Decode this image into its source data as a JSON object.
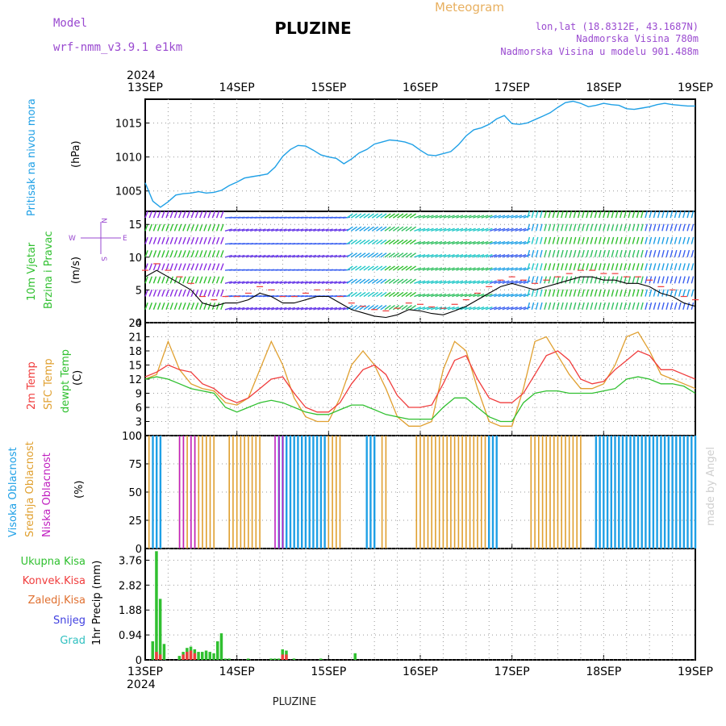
{
  "header": {
    "title": "PLUZINE",
    "meteogram_label": "Meteogram",
    "model_label": "Model",
    "model_name": "wrf-nmm_v3.9.1  e1km",
    "lonlat": "lon,lat (18.8312E, 43.1687N)",
    "altitude": "Nadmorska Visina 780m",
    "model_altitude": "Nadmorska Visina u modelu 901.488m",
    "footer_title": "PLUZINE",
    "credit": "made by Angel"
  },
  "colors": {
    "pressure": "#1fa0e6",
    "temp2m": "#f03c3c",
    "sfc_temp": "#e0a030",
    "dewpt": "#30c030",
    "high_cloud": "#1fa0e6",
    "mid_cloud": "#e0a030",
    "low_cloud": "#c020c0",
    "total_precip": "#30c030",
    "conv_precip": "#f03c3c",
    "frozen_precip": "#e07030",
    "snow": "#4040e0",
    "hail": "#30c0c0",
    "purple_label": "#9a4ad0",
    "meteogram_label": "#e8b060"
  },
  "time_axis": {
    "year": "2024",
    "labels": [
      "13SEP",
      "14SEP",
      "15SEP",
      "16SEP",
      "17SEP",
      "18SEP",
      "19SEP"
    ]
  },
  "panels": {
    "pressure": {
      "ylabel_name": "Pritisak na nivou mora",
      "unit": "(hPa)",
      "ticks": [
        "1005",
        "1010",
        "1015"
      ]
    },
    "wind": {
      "ylabel_line1": "10m Vjetar",
      "ylabel_line2": "Brzina i Pravac",
      "unit": "(m/s)",
      "ticks": [
        "0",
        "5",
        "10",
        "15"
      ],
      "compass_n": "N",
      "compass_w": "W",
      "compass_e": "E",
      "compass_s": "S"
    },
    "temp": {
      "label_2m": "2m Temp",
      "label_sfc": "SFC Temp",
      "label_dew": "dewpt Temp",
      "unit": "(C)",
      "ticks": [
        "0",
        "3",
        "6",
        "9",
        "12",
        "15",
        "18",
        "21",
        "24"
      ]
    },
    "cloud": {
      "label_high": "Visoka Oblacnost",
      "label_mid": "Srednja Oblacnost",
      "label_low": "Niska Oblacnost",
      "unit": "(%)",
      "ticks": [
        "0",
        "25",
        "50",
        "75",
        "100"
      ]
    },
    "precip": {
      "label_total": "Ukupna Kisa",
      "label_conv": "Konvek.Kisa",
      "label_frozen": "Zaledj.Kisa",
      "label_snow": "Snijeg",
      "label_hail": "Grad",
      "ylabel": "1hr Precip (mm)",
      "ticks": [
        "0",
        "0.94",
        "1.88",
        "2.82",
        "3.76"
      ]
    }
  },
  "chart_data": [
    {
      "type": "line",
      "name": "pressure",
      "x_unit": "hours since 13SEP 00UTC",
      "ylim": [
        1002,
        1018.5
      ],
      "series": [
        {
          "x": [
            0,
            2,
            4,
            6,
            8,
            10,
            12,
            14,
            16,
            18,
            20,
            22,
            24,
            26,
            28,
            30,
            32,
            34,
            36,
            38,
            40,
            42,
            44,
            46,
            48,
            50,
            52,
            54,
            56,
            58,
            60,
            62,
            64,
            66,
            68,
            70,
            72,
            74,
            76,
            78,
            80,
            82,
            84,
            86,
            88,
            90,
            92,
            94,
            96,
            98,
            100,
            102,
            104,
            106,
            108,
            110,
            112,
            114,
            116,
            118,
            120,
            122,
            124,
            126,
            128,
            130,
            132,
            134,
            136,
            138,
            140,
            142,
            144
          ],
          "y": [
            1006.2,
            1003.5,
            1002.6,
            1003.4,
            1004.4,
            1004.6,
            1004.7,
            1004.9,
            1004.7,
            1004.8,
            1005.1,
            1005.8,
            1006.3,
            1006.9,
            1007.1,
            1007.3,
            1007.5,
            1008.5,
            1010.1,
            1011.1,
            1011.7,
            1011.6,
            1011.0,
            1010.3,
            1010.0,
            1009.8,
            1009.0,
            1009.7,
            1010.6,
            1011.1,
            1011.9,
            1012.2,
            1012.5,
            1012.4,
            1012.2,
            1011.8,
            1011.0,
            1010.3,
            1010.2,
            1010.5,
            1010.8,
            1011.8,
            1013.1,
            1014.0,
            1014.3,
            1014.8,
            1015.6,
            1016.1,
            1014.9,
            1014.8,
            1015.0,
            1015.5,
            1016.0,
            1016.5,
            1017.3,
            1018.0,
            1018.2,
            1017.9,
            1017.4,
            1017.6,
            1017.9,
            1017.7,
            1017.6,
            1017.1,
            1017.0,
            1017.2,
            1017.4,
            1017.7,
            1017.9,
            1017.7,
            1017.6,
            1017.5,
            1017.5
          ]
        }
      ],
      "ticks_y": [
        1005,
        1010,
        1015
      ]
    },
    {
      "type": "line",
      "name": "wind_speed",
      "x_unit": "hours since 13SEP 00UTC",
      "ylim": [
        0,
        17
      ],
      "series": [
        {
          "name": "speed",
          "x": [
            0,
            3,
            6,
            9,
            12,
            15,
            18,
            21,
            24,
            27,
            30,
            33,
            36,
            39,
            42,
            45,
            48,
            51,
            54,
            57,
            60,
            63,
            66,
            69,
            72,
            75,
            78,
            81,
            84,
            87,
            90,
            93,
            96,
            99,
            102,
            105,
            108,
            111,
            114,
            117,
            120,
            123,
            126,
            129,
            132,
            135,
            138,
            141,
            144
          ],
          "y": [
            7,
            8,
            7,
            6,
            5,
            3,
            2.5,
            3,
            3,
            3.5,
            4.5,
            4,
            3,
            3,
            3.5,
            4,
            4,
            3,
            2,
            1.5,
            1,
            0.8,
            1.2,
            2,
            1.8,
            1.4,
            1.2,
            1.8,
            2.5,
            3.5,
            4.5,
            5.5,
            6,
            5.5,
            5,
            5.5,
            6,
            6.5,
            7,
            7,
            6.5,
            6.5,
            6,
            6,
            5.5,
            4.5,
            4,
            3,
            2.5
          ]
        }
      ],
      "barb_note": "wind direction barbs, colored by speed band"
    },
    {
      "type": "line",
      "name": "temperature",
      "x_unit": "hours since 13SEP 00UTC",
      "ylim": [
        0,
        24
      ],
      "series": [
        {
          "name": "2m Temp",
          "x": [
            0,
            3,
            6,
            9,
            12,
            15,
            18,
            21,
            24,
            27,
            30,
            33,
            36,
            39,
            42,
            45,
            48,
            51,
            54,
            57,
            60,
            63,
            66,
            69,
            72,
            75,
            78,
            81,
            84,
            87,
            90,
            93,
            96,
            99,
            102,
            105,
            108,
            111,
            114,
            117,
            120,
            123,
            126,
            129,
            132,
            135,
            138,
            141,
            144
          ],
          "y": [
            12.5,
            13.5,
            15,
            14,
            13.5,
            11,
            10,
            8,
            7,
            8,
            10,
            12,
            12.5,
            9,
            6,
            5,
            5,
            7,
            11,
            14,
            15,
            13,
            8.5,
            6,
            6,
            6.5,
            11,
            16,
            17,
            12,
            8,
            7,
            7,
            9,
            13,
            17,
            18,
            16,
            12,
            11,
            11.5,
            14,
            16,
            18,
            17,
            14,
            14,
            13,
            12
          ]
        },
        {
          "name": "SFC Temp",
          "x": [
            0,
            3,
            6,
            9,
            12,
            15,
            18,
            21,
            24,
            27,
            30,
            33,
            36,
            39,
            42,
            45,
            48,
            51,
            54,
            57,
            60,
            63,
            66,
            69,
            72,
            75,
            78,
            81,
            84,
            87,
            90,
            93,
            96,
            99,
            102,
            105,
            108,
            111,
            114,
            117,
            120,
            123,
            126,
            129,
            132,
            135,
            138,
            141,
            144
          ],
          "y": [
            12,
            13,
            20,
            14,
            11,
            10,
            9.5,
            7,
            6.5,
            8,
            14,
            20,
            15,
            8,
            4,
            3,
            3,
            8,
            15,
            18,
            15,
            10,
            4,
            2,
            2,
            3,
            14,
            20,
            18,
            10,
            3,
            2,
            2,
            10,
            20,
            21,
            17,
            13,
            10,
            10,
            11,
            15,
            21,
            22,
            18,
            13,
            12,
            11,
            10
          ]
        },
        {
          "name": "dewpt Temp",
          "x": [
            0,
            3,
            6,
            9,
            12,
            15,
            18,
            21,
            24,
            27,
            30,
            33,
            36,
            39,
            42,
            45,
            48,
            51,
            54,
            57,
            60,
            63,
            66,
            69,
            72,
            75,
            78,
            81,
            84,
            87,
            90,
            93,
            96,
            99,
            102,
            105,
            108,
            111,
            114,
            117,
            120,
            123,
            126,
            129,
            132,
            135,
            138,
            141,
            144
          ],
          "y": [
            12,
            12.5,
            12,
            11,
            10,
            9.5,
            9,
            6,
            5,
            6,
            7,
            7.5,
            7,
            6,
            5,
            4.5,
            4.5,
            5.5,
            6.5,
            6.5,
            5.5,
            4.5,
            4,
            3.5,
            3.5,
            3.5,
            6,
            8,
            8,
            6,
            4,
            3,
            3,
            7,
            9,
            9.5,
            9.5,
            9,
            9,
            9,
            9.5,
            10,
            12,
            12.5,
            12,
            11,
            11,
            10.5,
            9
          ]
        }
      ]
    },
    {
      "type": "bar",
      "name": "cloud_cover",
      "x_unit": "hours since 13SEP 00UTC",
      "ylim": [
        0,
        100
      ],
      "series": [
        {
          "name": "Srednja Oblacnost",
          "periods": [
            [
              1,
              3
            ],
            [
              9,
              14
            ],
            [
              15,
              18
            ],
            [
              22,
              30
            ],
            [
              35,
              46
            ],
            [
              48,
              51
            ],
            [
              58,
              60
            ],
            [
              62,
              63
            ],
            [
              71,
              92
            ],
            [
              101,
              114
            ],
            [
              130,
              134
            ]
          ]
        },
        {
          "name": "Visoka Oblacnost",
          "periods": [
            [
              2,
              4
            ],
            [
              35,
              47
            ],
            [
              58,
              60
            ],
            [
              90,
              92
            ],
            [
              118,
              144
            ]
          ]
        },
        {
          "name": "Niska Oblacnost",
          "periods": [
            [
              9,
              10
            ],
            [
              12,
              13
            ],
            [
              34,
              36
            ]
          ]
        }
      ]
    },
    {
      "type": "bar",
      "name": "hourly_precip",
      "x_unit": "hours since 13SEP 00UTC",
      "ylim": [
        0,
        4.2
      ],
      "series": [
        {
          "name": "Ukupna Kisa",
          "x": [
            2,
            3,
            4,
            5,
            9,
            10,
            11,
            12,
            13,
            14,
            15,
            16,
            17,
            18,
            19,
            20,
            21,
            22,
            27,
            33,
            34,
            35,
            36,
            37,
            39,
            46,
            55
          ],
          "y": [
            0.7,
            4.1,
            2.3,
            0.6,
            0.15,
            0.3,
            0.45,
            0.5,
            0.4,
            0.3,
            0.3,
            0.35,
            0.3,
            0.25,
            0.7,
            1.0,
            0.05,
            0.05,
            0.05,
            0.05,
            0.05,
            0.05,
            0.4,
            0.35,
            0.05,
            0.05,
            0.25
          ]
        },
        {
          "name": "Konvek.Kisa",
          "x": [
            3,
            4,
            10,
            11,
            12,
            13,
            36,
            37
          ],
          "y": [
            0.3,
            0.2,
            0.2,
            0.3,
            0.35,
            0.25,
            0.2,
            0.2
          ]
        }
      ]
    }
  ]
}
